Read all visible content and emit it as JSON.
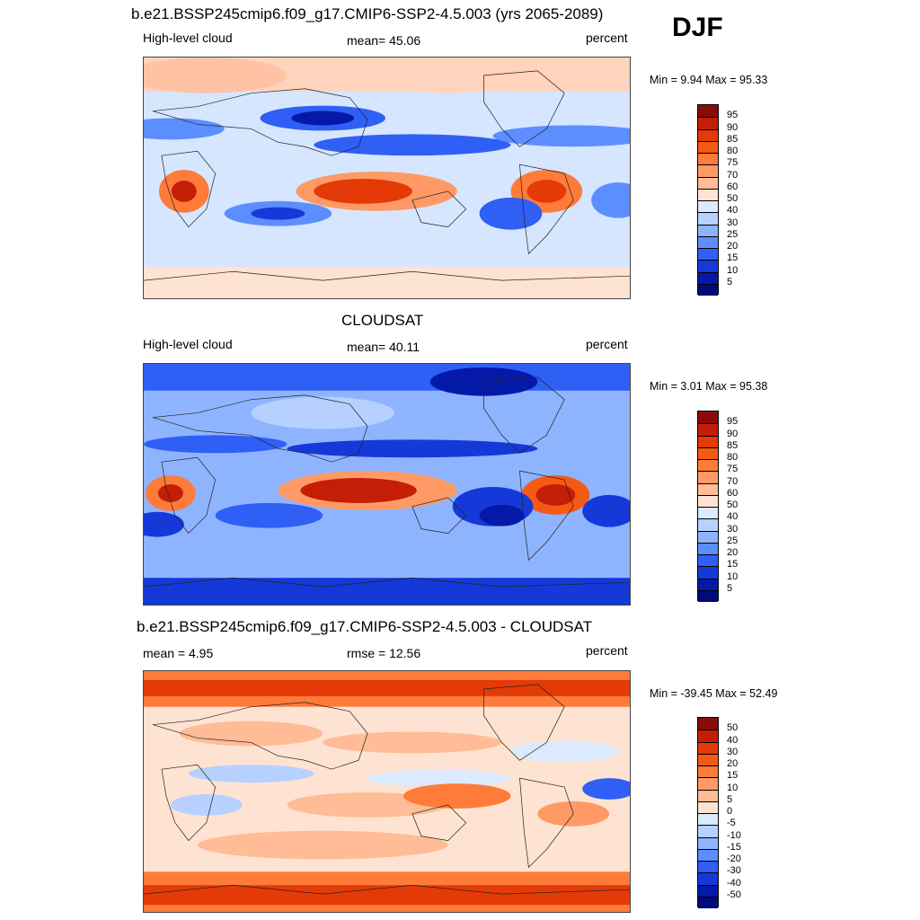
{
  "season": "DJF",
  "panels": [
    {
      "title": "b.e21.BSSP245cmip6.f09_g17.CMIP6-SSP2-4.5.003 (yrs 2065-2089)",
      "left_label": "High-level cloud",
      "center_label": "mean=  45.06",
      "right_label": "percent",
      "minmax": "Min =   9.94 Max =  95.33",
      "colorbar": {
        "ticks": [
          "95",
          "90",
          "85",
          "80",
          "75",
          "70",
          "60",
          "50",
          "40",
          "30",
          "25",
          "20",
          "15",
          "10",
          "5"
        ],
        "colors": [
          "#8b0a0a",
          "#c41f06",
          "#e33a08",
          "#f55a14",
          "#ff7b3a",
          "#ff9a66",
          "#ffbc96",
          "#ffe3d2",
          "#dbeaff",
          "#b6d1ff",
          "#8fb4ff",
          "#5c8eff",
          "#2f5ff5",
          "#1539d8",
          "#0519a8",
          "#020a7a"
        ]
      }
    },
    {
      "title": "CLOUDSAT",
      "left_label": "High-level cloud",
      "center_label": "mean=  40.11",
      "right_label": "percent",
      "minmax": "Min =   3.01 Max =  95.38",
      "colorbar": {
        "ticks": [
          "95",
          "90",
          "85",
          "80",
          "75",
          "70",
          "60",
          "50",
          "40",
          "30",
          "25",
          "20",
          "15",
          "10",
          "5"
        ],
        "colors": [
          "#8b0a0a",
          "#c41f06",
          "#e33a08",
          "#f55a14",
          "#ff7b3a",
          "#ff9a66",
          "#ffbc96",
          "#ffe3d2",
          "#dbeaff",
          "#b6d1ff",
          "#8fb4ff",
          "#5c8eff",
          "#2f5ff5",
          "#1539d8",
          "#0519a8",
          "#020a7a"
        ]
      }
    },
    {
      "title": "b.e21.BSSP245cmip6.f09_g17.CMIP6-SSP2-4.5.003 - CLOUDSAT",
      "left_label": "mean =   4.95",
      "center_label": "rmse =  12.56",
      "right_label": "percent",
      "minmax": "Min = -39.45 Max =  52.49",
      "colorbar": {
        "ticks": [
          "50",
          "40",
          "30",
          "20",
          "15",
          "10",
          "5",
          "0",
          "-5",
          "-10",
          "-15",
          "-20",
          "-30",
          "-40",
          "-50"
        ],
        "colors": [
          "#8b0a0a",
          "#c41f06",
          "#e33a08",
          "#f55a14",
          "#ff7b3a",
          "#ff9a66",
          "#ffbc96",
          "#ffe3d2",
          "#dbeaff",
          "#b6d1ff",
          "#8fb4ff",
          "#5c8eff",
          "#2f5ff5",
          "#1539d8",
          "#0519a8",
          "#020a7a"
        ]
      }
    }
  ]
}
